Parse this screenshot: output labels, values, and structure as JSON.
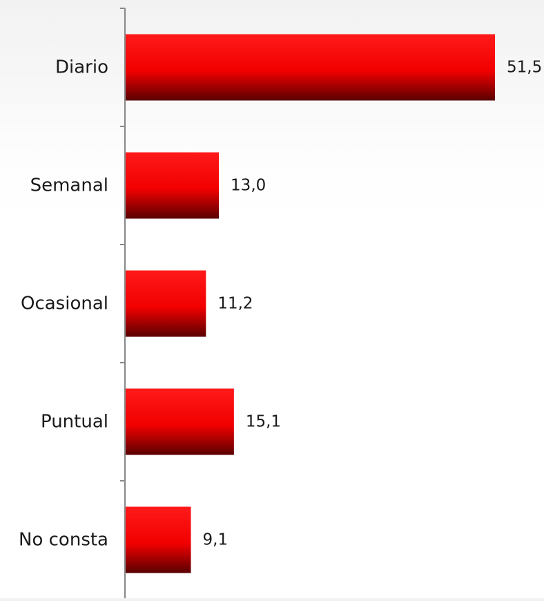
{
  "chart_data": {
    "type": "bar",
    "orientation": "horizontal",
    "categories": [
      "Diario",
      "Semanal",
      "Ocasional",
      "Puntual",
      "No consta"
    ],
    "values": [
      51.5,
      13.0,
      11.2,
      15.1,
      9.1
    ],
    "value_labels": [
      "51,5",
      "13,0",
      "11,2",
      "15,1",
      "9,1"
    ],
    "title": "",
    "xlabel": "",
    "ylabel": "",
    "xlim": [
      0,
      58
    ],
    "grid": false,
    "legend": "none",
    "colors": {
      "bar_top": "#ff1a1a",
      "bar_mid": "#f20000",
      "bar_bottom": "#5a0000",
      "axis": "#888888",
      "label": "#1a1a1a"
    }
  }
}
